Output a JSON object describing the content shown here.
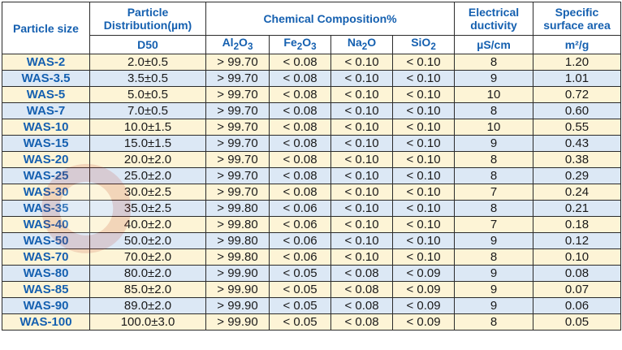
{
  "header": {
    "particle_size": "Particle size",
    "particle_distribution": "Particle Distribution(µm)",
    "chemical_composition": "Chemical Composition%",
    "electrical_ductivity": "Electrical ductivity",
    "specific_surface_area": "Specific surface area",
    "d50": "D50",
    "al2o3": {
      "base": "Al",
      "sub1": "2",
      "mid": "O",
      "sub2": "3"
    },
    "fe2o3": {
      "base": "Fe",
      "sub1": "2",
      "mid": "O",
      "sub2": "3"
    },
    "na2o": {
      "base": "Na",
      "sub1": "2",
      "mid": "O",
      "sub2": ""
    },
    "sio2": {
      "base": "SiO",
      "sub1": "2",
      "mid": "",
      "sub2": ""
    },
    "unit_conductivity": "µS/cm",
    "unit_area": "m²/g"
  },
  "rows": [
    [
      "WAS-2",
      "2.0±0.5",
      "> 99.70",
      "< 0.08",
      "< 0.10",
      "< 0.10",
      "8",
      "1.20"
    ],
    [
      "WAS-3.5",
      "3.5±0.5",
      "> 99.70",
      "< 0.08",
      "< 0.10",
      "< 0.10",
      "9",
      "1.01"
    ],
    [
      "WAS-5",
      "5.0±0.5",
      "> 99.70",
      "< 0.08",
      "< 0.10",
      "< 0.10",
      "10",
      "0.72"
    ],
    [
      "WAS-7",
      "7.0±0.5",
      "> 99.70",
      "< 0.08",
      "< 0.10",
      "< 0.10",
      "8",
      "0.60"
    ],
    [
      "WAS-10",
      "10.0±1.5",
      "> 99.70",
      "< 0.08",
      "< 0.10",
      "< 0.10",
      "10",
      "0.55"
    ],
    [
      "WAS-15",
      "15.0±1.5",
      "> 99.70",
      "< 0.08",
      "< 0.10",
      "< 0.10",
      "9",
      "0.43"
    ],
    [
      "WAS-20",
      "20.0±2.0",
      "> 99.70",
      "< 0.08",
      "< 0.10",
      "< 0.10",
      "8",
      "0.38"
    ],
    [
      "WAS-25",
      "25.0±2.0",
      "> 99.70",
      "< 0.08",
      "< 0.10",
      "< 0.10",
      "8",
      "0.29"
    ],
    [
      "WAS-30",
      "30.0±2.5",
      "> 99.70",
      "< 0.08",
      "< 0.10",
      "< 0.10",
      "7",
      "0.24"
    ],
    [
      "WAS-35",
      "35.0±2.5",
      "> 99.80",
      "< 0.06",
      "< 0.10",
      "< 0.10",
      "8",
      "0.21"
    ],
    [
      "WAS-40",
      "40.0±2.0",
      "> 99.80",
      "< 0.06",
      "< 0.10",
      "< 0.10",
      "7",
      "0.18"
    ],
    [
      "WAS-50",
      "50.0±2.0",
      "> 99.80",
      "< 0.06",
      "< 0.10",
      "< 0.10",
      "9",
      "0.12"
    ],
    [
      "WAS-70",
      "70.0±2.0",
      "> 99.80",
      "< 0.06",
      "< 0.10",
      "< 0.10",
      "8",
      "0.10"
    ],
    [
      "WAS-80",
      "80.0±2.0",
      "> 99.90",
      "< 0.05",
      "< 0.08",
      "< 0.09",
      "9",
      "0.08"
    ],
    [
      "WAS-85",
      "85.0±2.0",
      "> 99.90",
      "< 0.05",
      "< 0.08",
      "< 0.09",
      "9",
      "0.07"
    ],
    [
      "WAS-90",
      "89.0±2.0",
      "> 99.90",
      "< 0.05",
      "< 0.08",
      "< 0.09",
      "9",
      "0.06"
    ],
    [
      "WAS-100",
      "100.0±3.0",
      "> 99.90",
      "< 0.05",
      "< 0.08",
      "< 0.09",
      "8",
      "0.05"
    ]
  ],
  "colors": {
    "header_text": "#1560b0",
    "row_odd": "#fdf4d6",
    "row_even": "#dce8f5",
    "watermark": "#c0392b"
  }
}
